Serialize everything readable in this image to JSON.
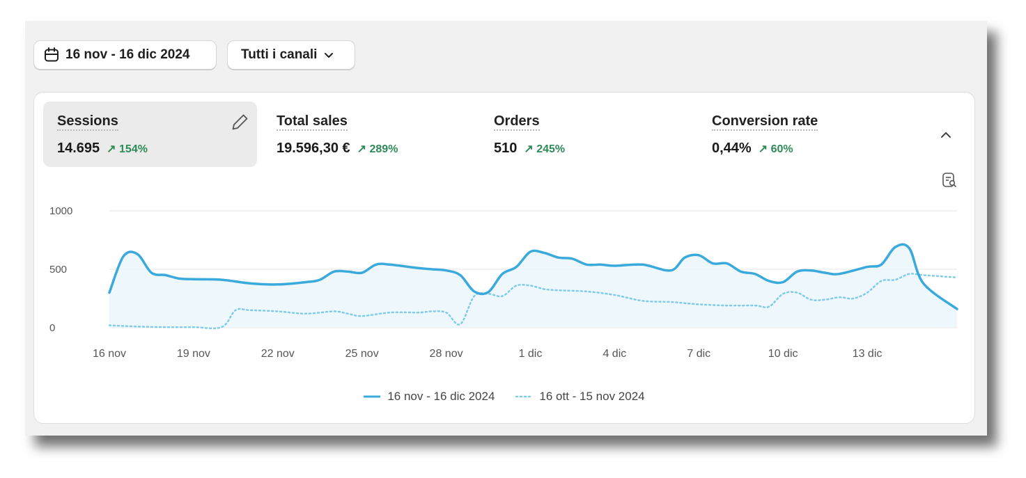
{
  "filters": {
    "date_range": "16 nov - 16 dic 2024",
    "channel": "Tutti i canali",
    "date_icon": "calendar-icon",
    "channel_icon": "chevron-down-icon"
  },
  "metrics": [
    {
      "label": "Sessions",
      "value": "14.695",
      "change": "↗ 154%",
      "active": true
    },
    {
      "label": "Total sales",
      "value": "19.596,30 €",
      "change": "↗ 289%",
      "active": false
    },
    {
      "label": "Orders",
      "value": "510",
      "change": "↗ 245%",
      "active": false
    },
    {
      "label": "Conversion rate",
      "value": "0,44%",
      "change": "↗ 60%",
      "active": false
    }
  ],
  "colors": {
    "accent": "#3aa9dc",
    "compare": "#7fcbe8",
    "positive": "#2e8b57",
    "area": "#eaf6fb"
  },
  "chart_data": {
    "type": "line",
    "y_ticks": [
      "1000",
      "500",
      "0"
    ],
    "ylim": [
      0,
      1000
    ],
    "x_tick_labels": [
      "16 nov",
      "19 nov",
      "22 nov",
      "25 nov",
      "28 nov",
      "1 dic",
      "4 dic",
      "7 dic",
      "10 dic",
      "13 dic"
    ],
    "x_tick_positions": [
      0,
      3,
      6,
      9,
      12,
      15,
      18,
      21,
      24,
      27
    ],
    "grid": true,
    "legend_position": "bottom",
    "series": [
      {
        "name": "16 nov - 16 dic 2024",
        "style": "solid",
        "x": [
          0,
          0.5,
          1,
          1.5,
          2,
          2.5,
          3,
          4,
          5,
          6,
          7,
          7.5,
          8,
          8.5,
          9,
          9.5,
          10,
          11,
          11.5,
          12,
          12.5,
          13,
          13.5,
          14,
          14.5,
          15,
          15.5,
          16,
          16.5,
          17,
          17.5,
          18,
          19,
          20,
          20.5,
          21,
          21.5,
          22,
          22.5,
          23,
          23.5,
          24,
          24.5,
          25,
          25.5,
          26,
          27,
          27.5,
          28,
          28.5,
          29,
          30.2
        ],
        "y": [
          300,
          610,
          630,
          470,
          450,
          420,
          415,
          410,
          380,
          370,
          390,
          410,
          480,
          480,
          470,
          540,
          540,
          510,
          500,
          490,
          450,
          310,
          305,
          460,
          520,
          650,
          640,
          600,
          590,
          540,
          540,
          530,
          540,
          490,
          600,
          620,
          550,
          550,
          480,
          460,
          400,
          390,
          480,
          490,
          470,
          460,
          520,
          540,
          690,
          680,
          380,
          160
        ]
      },
      {
        "name": "16 ott - 15 nov 2024",
        "style": "dotted",
        "x": [
          0,
          1,
          2,
          3,
          4,
          4.5,
          5,
          6,
          7,
          8,
          8.5,
          9,
          10,
          11,
          11.5,
          12,
          12.5,
          13,
          13.5,
          14,
          14.5,
          15,
          15.5,
          16,
          17,
          18,
          19,
          20,
          20.5,
          21,
          22,
          23,
          23.5,
          24,
          24.5,
          25,
          25.5,
          26,
          26.5,
          27,
          27.5,
          28,
          28.5,
          29,
          30.2
        ],
        "y": [
          20,
          10,
          5,
          5,
          5,
          150,
          150,
          140,
          120,
          140,
          120,
          100,
          130,
          130,
          140,
          130,
          30,
          270,
          290,
          270,
          360,
          360,
          330,
          320,
          310,
          280,
          230,
          220,
          210,
          200,
          190,
          190,
          180,
          290,
          300,
          240,
          240,
          260,
          250,
          300,
          400,
          410,
          460,
          450,
          430
        ]
      }
    ]
  }
}
